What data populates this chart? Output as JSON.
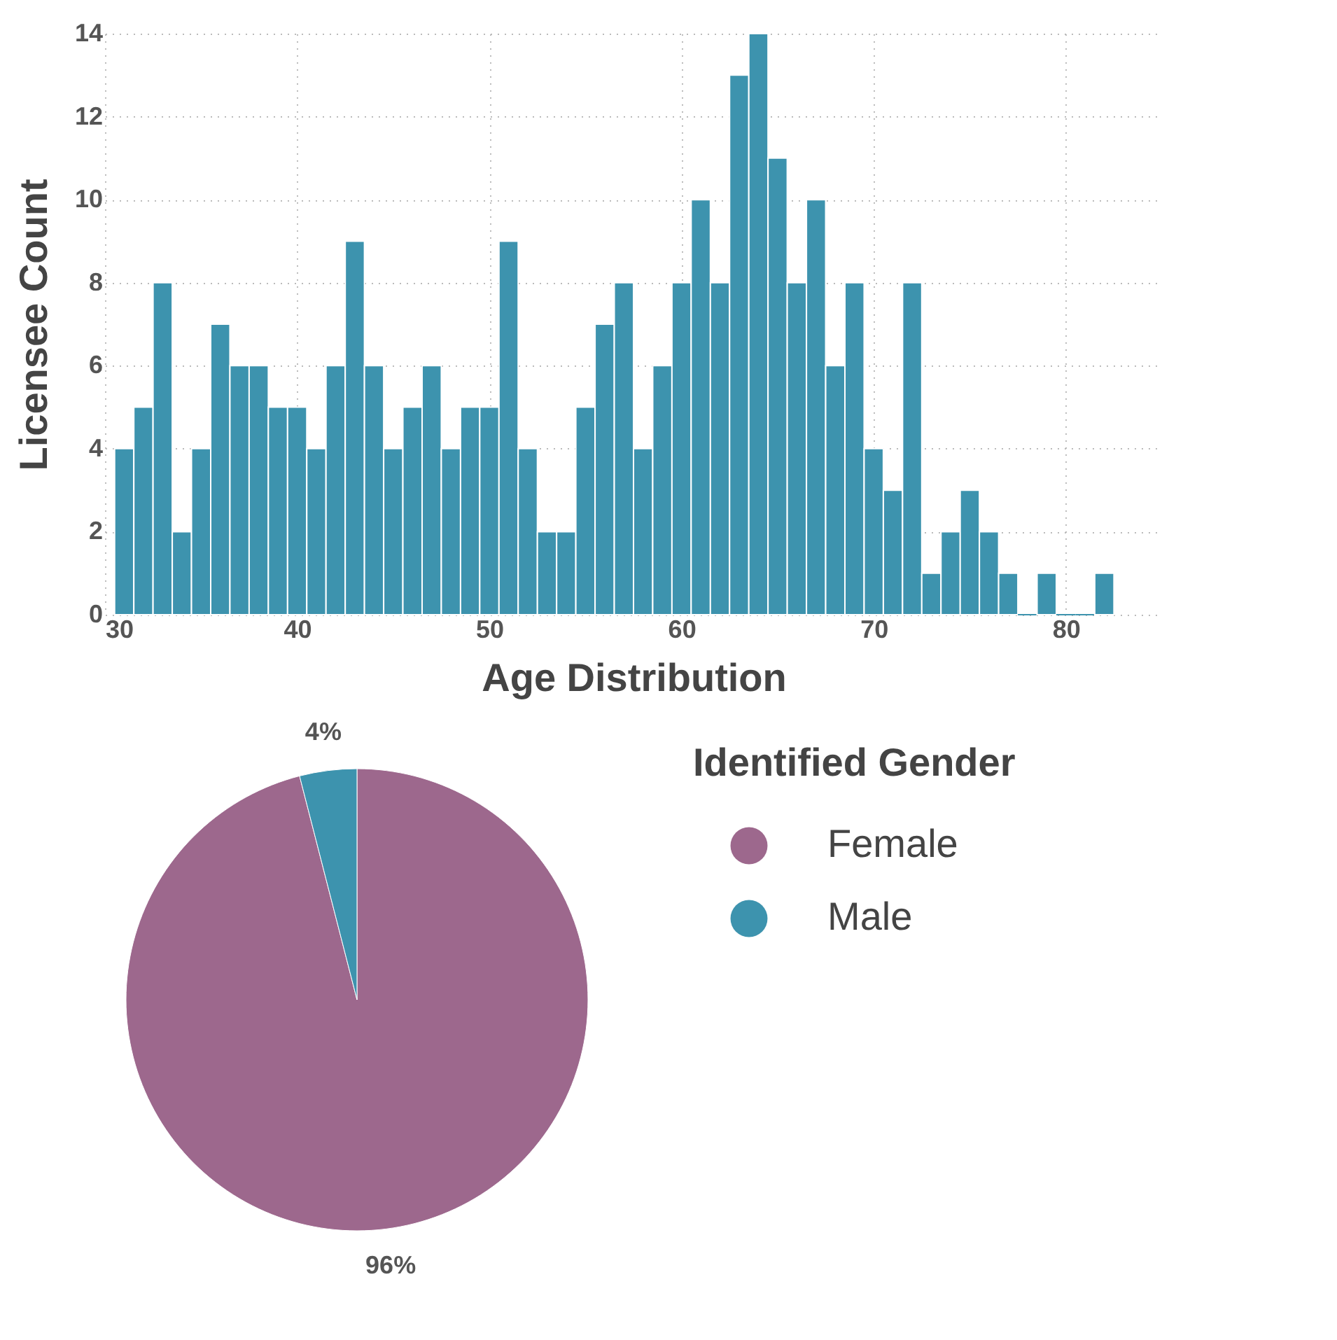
{
  "chart_data": [
    {
      "type": "histogram",
      "xlabel": "Age Distribution",
      "ylabel": "Licensee Count",
      "bins": [
        30.5,
        31.5,
        32.5,
        33.5,
        34.5,
        35.5,
        36.5,
        37.5,
        38.5,
        39.5,
        40.5,
        41.5,
        42.5,
        43.5,
        44.5,
        45.5,
        46.5,
        47.5,
        48.5,
        49.5,
        50.5,
        51.5,
        52.5,
        53.5,
        54.5,
        55.5,
        56.5,
        57.5,
        58.5,
        59.5,
        60.5,
        61.5,
        62.5,
        63.5,
        64.5,
        65.5,
        66.5,
        67.5,
        68.5,
        69.5,
        70.5,
        71.5,
        72.5,
        73.5,
        74.5,
        75.5,
        76.5,
        77.5,
        78.5,
        79.5,
        80.5,
        81.5,
        82.5
      ],
      "values": [
        4,
        5,
        8,
        2,
        4,
        7,
        6,
        6,
        5,
        5,
        4,
        6,
        9,
        6,
        4,
        5,
        6,
        4,
        5,
        5,
        9,
        4,
        2,
        2,
        5,
        7,
        8,
        4,
        6,
        8,
        10,
        8,
        13,
        14,
        11,
        8,
        10,
        6,
        8,
        4,
        3,
        8,
        1,
        2,
        3,
        2,
        1,
        0,
        1,
        0,
        0,
        1
      ],
      "color": "#3d93ae",
      "xlim": [
        30,
        85
      ],
      "ylim": [
        0,
        14
      ],
      "xticks": [
        30,
        40,
        50,
        60,
        70,
        80
      ],
      "yticks": [
        0,
        2,
        4,
        6,
        8,
        10,
        12,
        14
      ],
      "grid": true
    },
    {
      "type": "pie",
      "legend_title": "Identified Gender",
      "categories": [
        "Female",
        "Male"
      ],
      "values": [
        96,
        4
      ],
      "colors": [
        "#9d688d",
        "#3d93ae"
      ],
      "value_labels": [
        "96%",
        "4%"
      ],
      "legend": "right"
    }
  ]
}
